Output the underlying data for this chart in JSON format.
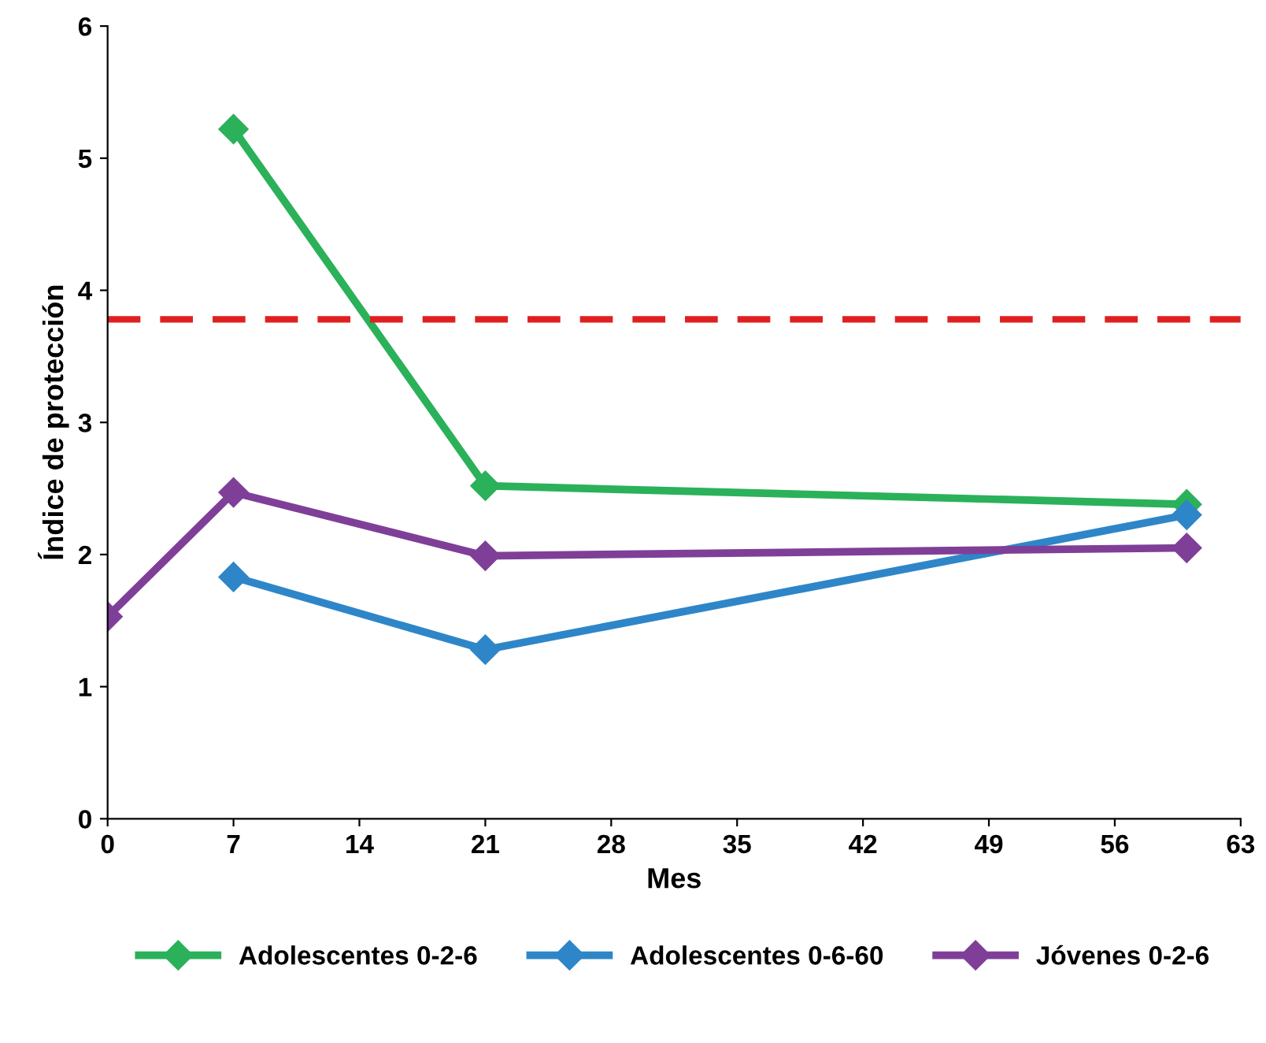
{
  "chart_data": {
    "type": "line",
    "xlabel": "Mes",
    "ylabel": "Índice de protección",
    "xlim": [
      0,
      63
    ],
    "xticks": [
      0,
      7,
      14,
      21,
      28,
      35,
      42,
      49,
      56,
      63
    ],
    "ylim": [
      0,
      6
    ],
    "yticks": [
      0,
      1,
      2,
      3,
      4,
      5,
      6
    ],
    "grid": false,
    "legend": "bottom",
    "marker": "diamond",
    "line_style": "solid",
    "series": [
      {
        "name": "Adolescentes 0-2-6",
        "color": "#2bb15a",
        "x": [
          7,
          21,
          60
        ],
        "values": [
          5.22,
          2.52,
          2.38
        ]
      },
      {
        "name": "Adolescentes 0-6-60",
        "color": "#2e86c8",
        "x": [
          7,
          21,
          60
        ],
        "values": [
          1.83,
          1.28,
          2.3
        ]
      },
      {
        "name": "Jóvenes 0-2-6",
        "color": "#7f3f98",
        "x": [
          0,
          7,
          21,
          60
        ],
        "values": [
          1.53,
          2.47,
          1.99,
          2.05
        ]
      }
    ],
    "ref_lines": [
      {
        "axis": "y",
        "value": 3.78,
        "color": "#e0201f",
        "line_style": "dashed"
      }
    ]
  }
}
